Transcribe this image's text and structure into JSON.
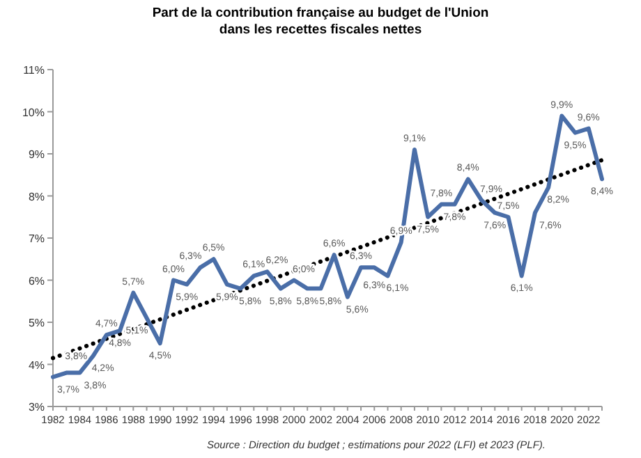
{
  "chart_data": {
    "type": "line",
    "title": "Part de la contribution française au budget de l'Union\ndans les recettes fiscales nettes",
    "annotations": [
      "Source : Direction du budget ; estimations pour 2022 (LFI) et 2023 (PLF)."
    ],
    "x": [
      1982,
      1983,
      1984,
      1985,
      1986,
      1987,
      1988,
      1989,
      1990,
      1991,
      1992,
      1993,
      1994,
      1995,
      1996,
      1997,
      1998,
      1999,
      2000,
      2001,
      2002,
      2003,
      2004,
      2005,
      2006,
      2007,
      2008,
      2009,
      2010,
      2011,
      2012,
      2013,
      2014,
      2015,
      2016,
      2017,
      2018,
      2019,
      2020,
      2021,
      2022,
      2023
    ],
    "series": [
      {
        "color": "#4a6ea8",
        "values": [
          3.7,
          3.8,
          3.8,
          4.2,
          4.7,
          4.8,
          5.7,
          5.1,
          4.5,
          6.0,
          5.9,
          6.3,
          6.5,
          5.9,
          5.8,
          6.1,
          6.2,
          5.8,
          6.0,
          5.8,
          5.8,
          6.6,
          5.6,
          6.3,
          6.3,
          6.1,
          6.9,
          9.1,
          7.5,
          7.8,
          7.8,
          8.4,
          7.9,
          7.6,
          7.5,
          6.1,
          7.6,
          8.2,
          9.9,
          9.5,
          9.6,
          8.4
        ],
        "value_labels": [
          "3,7%",
          "3,8%",
          "3,8%",
          "4,2%",
          "4,7%",
          "4,8%",
          "5,7%",
          "5,1%",
          "4,5%",
          "6,0%",
          "5,9%",
          "6,3%",
          "6,5%",
          "5,9%",
          "5,8%",
          "6,1%",
          "6,2%",
          "5,8%",
          "6,0%",
          "5,8%",
          "5,8%",
          "6,6%",
          "5,6%",
          "6,3%",
          "6,3%",
          "6,1%",
          "6,9%",
          "9,1%",
          "7,5%",
          "7,8%",
          "7,8%",
          "8,4%",
          "7,9%",
          "7,6%",
          "7,5%",
          "6,1%",
          "7,6%",
          "8,2%",
          "9,9%",
          "9,5%",
          "9,6%",
          "8,4%"
        ]
      },
      {
        "type": "line",
        "color": "#000000",
        "line_style": "dotted",
        "x": [
          1982,
          2023
        ],
        "values": [
          4.15,
          8.85
        ]
      }
    ],
    "xlim": [
      1982,
      2023
    ],
    "xticks": [
      1982,
      1984,
      1986,
      1988,
      1990,
      1992,
      1994,
      1996,
      1998,
      2000,
      2002,
      2004,
      2006,
      2008,
      2010,
      2012,
      2014,
      2016,
      2018,
      2020,
      2022
    ],
    "ylim": [
      3,
      11
    ],
    "yticks": [
      {
        "value": 3,
        "label": "3%"
      },
      {
        "value": 4,
        "label": "4%"
      },
      {
        "value": 5,
        "label": "5%"
      },
      {
        "value": 6,
        "label": "6%"
      },
      {
        "value": 7,
        "label": "7%"
      },
      {
        "value": 8,
        "label": "8%"
      },
      {
        "value": 9,
        "label": "9%"
      },
      {
        "value": 10,
        "label": "10%"
      },
      {
        "value": 11,
        "label": "11%"
      }
    ],
    "grid": false
  }
}
